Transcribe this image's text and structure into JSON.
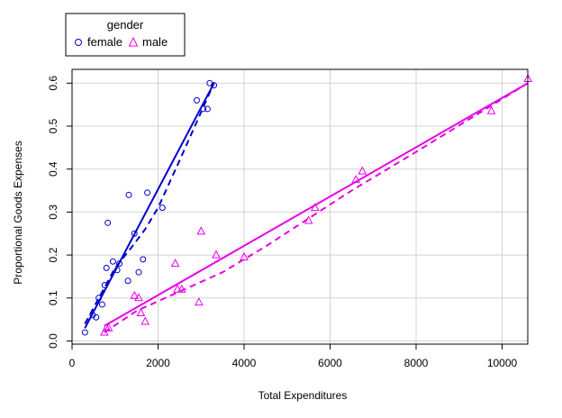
{
  "chart_data": {
    "type": "scatter",
    "xlabel": "Total Expenditures",
    "ylabel": "Proportional Goods Expenses",
    "xlim": [
      0,
      10800
    ],
    "ylim": [
      0,
      0.62
    ],
    "xticks": [
      "0",
      "2000",
      "4000",
      "6000",
      "8000",
      "10000"
    ],
    "yticks": [
      "0.0",
      "0.1",
      "0.2",
      "0.3",
      "0.4",
      "0.5",
      "0.6"
    ],
    "grid": true,
    "legend": {
      "title": "gender",
      "placement": "top-left-outside"
    },
    "series": [
      {
        "name": "female",
        "marker": "circle",
        "color": "#0000cd",
        "points": [
          [
            300,
            0.02
          ],
          [
            480,
            0.06
          ],
          [
            560,
            0.055
          ],
          [
            620,
            0.1
          ],
          [
            700,
            0.085
          ],
          [
            760,
            0.13
          ],
          [
            800,
            0.17
          ],
          [
            830,
            0.275
          ],
          [
            950,
            0.185
          ],
          [
            1050,
            0.165
          ],
          [
            1100,
            0.18
          ],
          [
            1300,
            0.14
          ],
          [
            1320,
            0.34
          ],
          [
            1450,
            0.25
          ],
          [
            1550,
            0.16
          ],
          [
            1650,
            0.19
          ],
          [
            1750,
            0.345
          ],
          [
            2100,
            0.31
          ],
          [
            2900,
            0.56
          ],
          [
            3050,
            0.54
          ],
          [
            3150,
            0.54
          ],
          [
            3200,
            0.6
          ],
          [
            3300,
            0.595
          ]
        ],
        "fit_line": [
          [
            300,
            0.03
          ],
          [
            3300,
            0.6
          ]
        ],
        "smooth_line": [
          [
            300,
            0.04
          ],
          [
            1000,
            0.17
          ],
          [
            1400,
            0.22
          ],
          [
            1700,
            0.26
          ],
          [
            2000,
            0.31
          ],
          [
            2500,
            0.42
          ],
          [
            2900,
            0.51
          ],
          [
            3300,
            0.6
          ]
        ]
      },
      {
        "name": "male",
        "marker": "triangle",
        "color": "#e600e6",
        "points": [
          [
            750,
            0.02
          ],
          [
            800,
            0.03
          ],
          [
            850,
            0.03
          ],
          [
            1450,
            0.105
          ],
          [
            1550,
            0.1
          ],
          [
            1600,
            0.065
          ],
          [
            1700,
            0.045
          ],
          [
            2400,
            0.18
          ],
          [
            2450,
            0.12
          ],
          [
            2550,
            0.12
          ],
          [
            2950,
            0.09
          ],
          [
            3000,
            0.255
          ],
          [
            3350,
            0.2
          ],
          [
            4000,
            0.195
          ],
          [
            5500,
            0.28
          ],
          [
            5650,
            0.31
          ],
          [
            6600,
            0.375
          ],
          [
            6750,
            0.395
          ],
          [
            9750,
            0.535
          ],
          [
            10600,
            0.61
          ]
        ],
        "fit_line": [
          [
            750,
            0.035
          ],
          [
            10600,
            0.6
          ]
        ],
        "smooth_line": [
          [
            750,
            0.02
          ],
          [
            1500,
            0.07
          ],
          [
            2500,
            0.115
          ],
          [
            3500,
            0.16
          ],
          [
            4500,
            0.22
          ],
          [
            5500,
            0.285
          ],
          [
            6500,
            0.35
          ],
          [
            8000,
            0.44
          ],
          [
            10600,
            0.6
          ]
        ]
      }
    ]
  }
}
